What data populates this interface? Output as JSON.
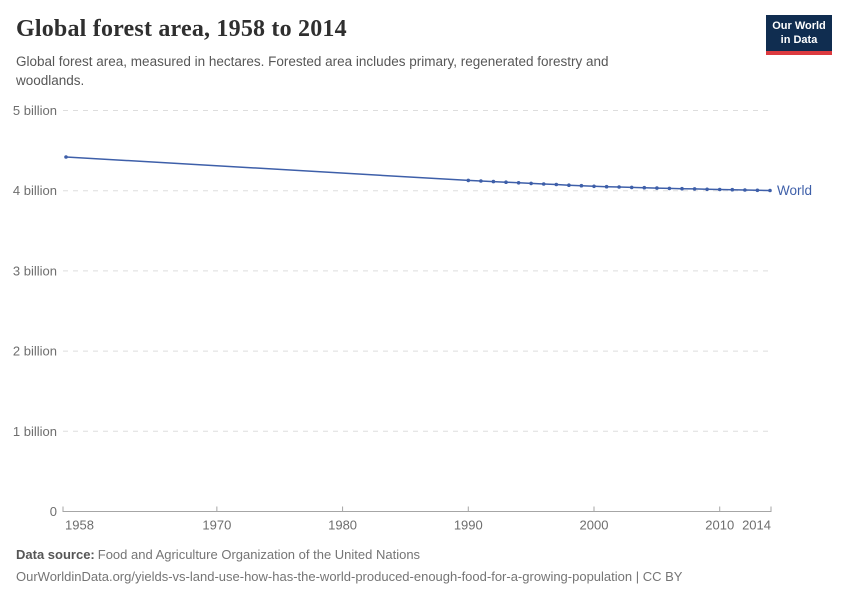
{
  "header": {
    "title": "Global forest area, 1958 to 2014",
    "subtitle": "Global forest area, measured in hectares. Forested area includes primary, regenerated forestry and woodlands.",
    "logo": {
      "line1": "Our World",
      "line2": "in Data",
      "bg_color": "#102d50",
      "accent_color": "#dc3a3f"
    }
  },
  "footer": {
    "source_label": "Data source:",
    "source_text": "Food and Agriculture Organization of the United Nations",
    "url_line": "OurWorldinData.org/yields-vs-land-use-how-has-the-world-produced-enough-food-for-a-growing-population | CC BY"
  },
  "chart_data": {
    "type": "line",
    "title": "Global forest area, 1958 to 2014",
    "xlabel": "Year",
    "ylabel": "Forest area (hectares)",
    "y_unit": "billion hectares",
    "xlim": [
      1958,
      2014
    ],
    "ylim": [
      0,
      5
    ],
    "grid": "horizontal dashed",
    "legend_position": "end-of-line label",
    "colors": {
      "line": "#3e5fa9",
      "grid": "#dddddd",
      "axis": "#a6a6a6",
      "tick_text": "#6e6e6e"
    },
    "y_ticks": [
      {
        "v": 0,
        "label": "0"
      },
      {
        "v": 1,
        "label": "1 billion"
      },
      {
        "v": 2,
        "label": "2 billion"
      },
      {
        "v": 3,
        "label": "3 billion"
      },
      {
        "v": 4,
        "label": "4 billion"
      },
      {
        "v": 5,
        "label": "5 billion"
      }
    ],
    "x_ticks": [
      {
        "year": 1958,
        "label": "1958",
        "anchor": "start"
      },
      {
        "year": 1970,
        "label": "1970",
        "anchor": "middle"
      },
      {
        "year": 1980,
        "label": "1980",
        "anchor": "middle"
      },
      {
        "year": 1990,
        "label": "1990",
        "anchor": "middle"
      },
      {
        "year": 2000,
        "label": "2000",
        "anchor": "middle"
      },
      {
        "year": 2010,
        "label": "2010",
        "anchor": "middle"
      },
      {
        "year": 2014,
        "label": "2014",
        "anchor": "end"
      }
    ],
    "x_tick_marks": [
      1970,
      1980,
      1990,
      2000,
      2010
    ],
    "series": [
      {
        "name": "World",
        "x": [
          1958,
          1990,
          1991,
          1992,
          1993,
          1994,
          1995,
          1996,
          1997,
          1998,
          1999,
          2000,
          2001,
          2002,
          2003,
          2004,
          2005,
          2006,
          2007,
          2008,
          2009,
          2010,
          2011,
          2012,
          2013,
          2014
        ],
        "y": [
          4.42,
          4.128,
          4.121,
          4.113,
          4.106,
          4.099,
          4.091,
          4.084,
          4.077,
          4.069,
          4.062,
          4.055,
          4.05,
          4.046,
          4.041,
          4.037,
          4.032,
          4.029,
          4.025,
          4.022,
          4.018,
          4.015,
          4.012,
          4.009,
          4.005,
          4.002
        ]
      }
    ]
  }
}
